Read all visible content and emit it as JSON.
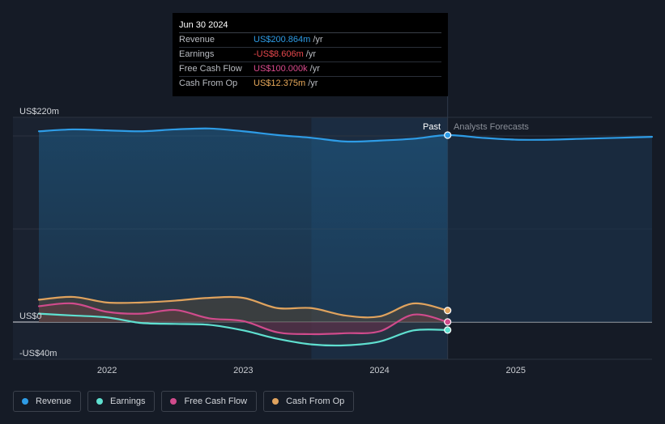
{
  "tooltip": {
    "date": "Jun 30 2024",
    "rows": [
      {
        "label": "Revenue",
        "value": "US$200.864m",
        "unit": "/yr",
        "color": "#2e9ce6"
      },
      {
        "label": "Earnings",
        "value": "-US$8.606m",
        "unit": "/yr",
        "color": "#e8484d"
      },
      {
        "label": "Free Cash Flow",
        "value": "US$100.000k",
        "unit": "/yr",
        "color": "#d94a8c"
      },
      {
        "label": "Cash From Op",
        "value": "US$12.375m",
        "unit": "/yr",
        "color": "#e8a95a"
      }
    ]
  },
  "labels": {
    "past": "Past",
    "forecast": "Analysts Forecasts"
  },
  "legend": [
    {
      "label": "Revenue",
      "color": "#2e9ce6"
    },
    {
      "label": "Earnings",
      "color": "#5fe0d0"
    },
    {
      "label": "Free Cash Flow",
      "color": "#d04b8c"
    },
    {
      "label": "Cash From Op",
      "color": "#e0a35e"
    }
  ],
  "chart_data": {
    "type": "line",
    "y_tick_labels": [
      "US$220m",
      "US$0",
      "-US$40m"
    ],
    "ylim": [
      -40,
      220
    ],
    "x_tick_labels": [
      "2022",
      "2023",
      "2024",
      "2025"
    ],
    "x_ticks": [
      2022.0,
      2023.0,
      2024.0,
      2025.0
    ],
    "xlim": [
      2021.5,
      2026.0
    ],
    "past_end": 2024.5,
    "highlight_start": 2023.5,
    "series": [
      {
        "name": "Revenue",
        "color": "#2e9ce6",
        "points": [
          [
            2021.5,
            205
          ],
          [
            2021.75,
            207
          ],
          [
            2022.0,
            206
          ],
          [
            2022.25,
            205
          ],
          [
            2022.5,
            207
          ],
          [
            2022.75,
            208
          ],
          [
            2023.0,
            205
          ],
          [
            2023.25,
            201
          ],
          [
            2023.5,
            198
          ],
          [
            2023.75,
            194
          ],
          [
            2024.0,
            195
          ],
          [
            2024.25,
            197
          ],
          [
            2024.5,
            200.864
          ],
          [
            2024.75,
            198
          ],
          [
            2025.0,
            196
          ],
          [
            2025.25,
            196
          ],
          [
            2025.5,
            197
          ],
          [
            2025.75,
            198
          ],
          [
            2026.0,
            199
          ]
        ]
      },
      {
        "name": "Earnings",
        "color": "#5fe0d0",
        "points": [
          [
            2021.5,
            9
          ],
          [
            2021.75,
            7
          ],
          [
            2022.0,
            5
          ],
          [
            2022.25,
            -1
          ],
          [
            2022.5,
            -2
          ],
          [
            2022.75,
            -3
          ],
          [
            2023.0,
            -9
          ],
          [
            2023.25,
            -18
          ],
          [
            2023.5,
            -24
          ],
          [
            2023.75,
            -25
          ],
          [
            2024.0,
            -21
          ],
          [
            2024.25,
            -9
          ],
          [
            2024.5,
            -8.606
          ]
        ]
      },
      {
        "name": "Free Cash Flow",
        "color": "#d04b8c",
        "points": [
          [
            2021.5,
            17
          ],
          [
            2021.75,
            20
          ],
          [
            2022.0,
            11
          ],
          [
            2022.25,
            9
          ],
          [
            2022.5,
            13
          ],
          [
            2022.75,
            4
          ],
          [
            2023.0,
            1
          ],
          [
            2023.25,
            -11
          ],
          [
            2023.5,
            -13
          ],
          [
            2023.75,
            -12
          ],
          [
            2024.0,
            -10
          ],
          [
            2024.25,
            8
          ],
          [
            2024.5,
            0.1
          ]
        ]
      },
      {
        "name": "Cash From Op",
        "color": "#e0a35e",
        "points": [
          [
            2021.5,
            24
          ],
          [
            2021.75,
            27
          ],
          [
            2022.0,
            21
          ],
          [
            2022.25,
            21
          ],
          [
            2022.5,
            23
          ],
          [
            2022.75,
            26
          ],
          [
            2023.0,
            26
          ],
          [
            2023.25,
            15
          ],
          [
            2023.5,
            15
          ],
          [
            2023.75,
            7
          ],
          [
            2024.0,
            6
          ],
          [
            2024.25,
            20
          ],
          [
            2024.5,
            12.375
          ]
        ]
      }
    ]
  }
}
